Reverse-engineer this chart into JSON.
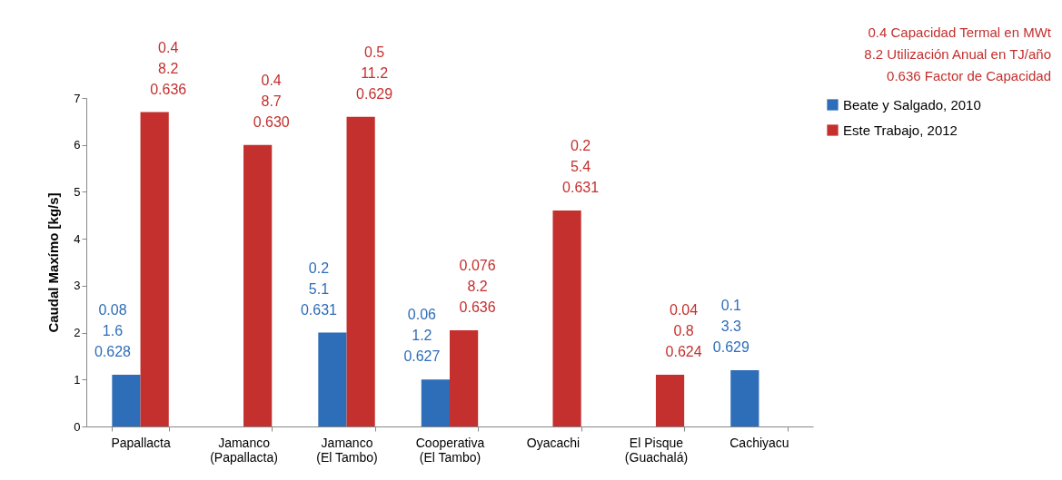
{
  "chart_data": {
    "type": "bar",
    "ylabel": "Caudal Maxímo [kg/s]",
    "categories": [
      "Papallacta",
      "Jamanco (Papallacta)",
      "Jamanco (El Tambo)",
      "Cooperativa (El Tambo)",
      "Oyacachi",
      "El Pisque (Guachalá)",
      "Cachiyacu"
    ],
    "series": [
      {
        "name": "Beate y Salgado, 2010",
        "color": "#2e6db8",
        "values": [
          1.1,
          0,
          2.0,
          1.0,
          0,
          0,
          1.2
        ]
      },
      {
        "name": "Este Trabajo, 2012",
        "color": "#c3302e",
        "values": [
          6.7,
          6.0,
          6.6,
          2.05,
          4.6,
          1.1,
          0
        ]
      }
    ],
    "ylim": [
      0,
      7
    ],
    "yticks": [
      0,
      1,
      2,
      3,
      4,
      5,
      6,
      7
    ],
    "grid": false,
    "legend": "right",
    "annotations": [
      "0.4  Capacidad Termal en MWt",
      "8.2  Utilización Anual en TJ/año",
      "0.636  Factor de Capacidad",
      {
        "text": "0.08\n1.6\n0.628",
        "x": "Papallacta",
        "y": 1.1
      },
      {
        "text": "0.4\n8.2\n0.636",
        "x": "Papallacta",
        "y": 6.7
      },
      {
        "text": "0.4\n8.7\n0.630",
        "x": "Jamanco (Papallacta)",
        "y": 6.0
      },
      {
        "text": "0.2\n5.1\n0.631",
        "x": "Jamanco (El Tambo)",
        "y": 2.0
      },
      {
        "text": "0.5\n11.2\n0.629",
        "x": "Jamanco (El Tambo)",
        "y": 6.6
      },
      {
        "text": "0.06\n1.2\n0.627",
        "x": "Cooperativa (El Tambo)",
        "y": 1.0
      },
      {
        "text": "0.076\n8.2\n0.636",
        "x": "Cooperativa (El Tambo)",
        "y": 2.05
      },
      {
        "text": "0.2\n5.4\n0.631",
        "x": "Oyacachi",
        "y": 4.6
      },
      {
        "text": "0.04\n0.8\n0.624",
        "x": "El Pisque (Guachalá)",
        "y": 1.1
      },
      {
        "text": "0.1\n3.3\n0.629",
        "x": "Cachiyacu",
        "y": 1.2
      }
    ]
  }
}
